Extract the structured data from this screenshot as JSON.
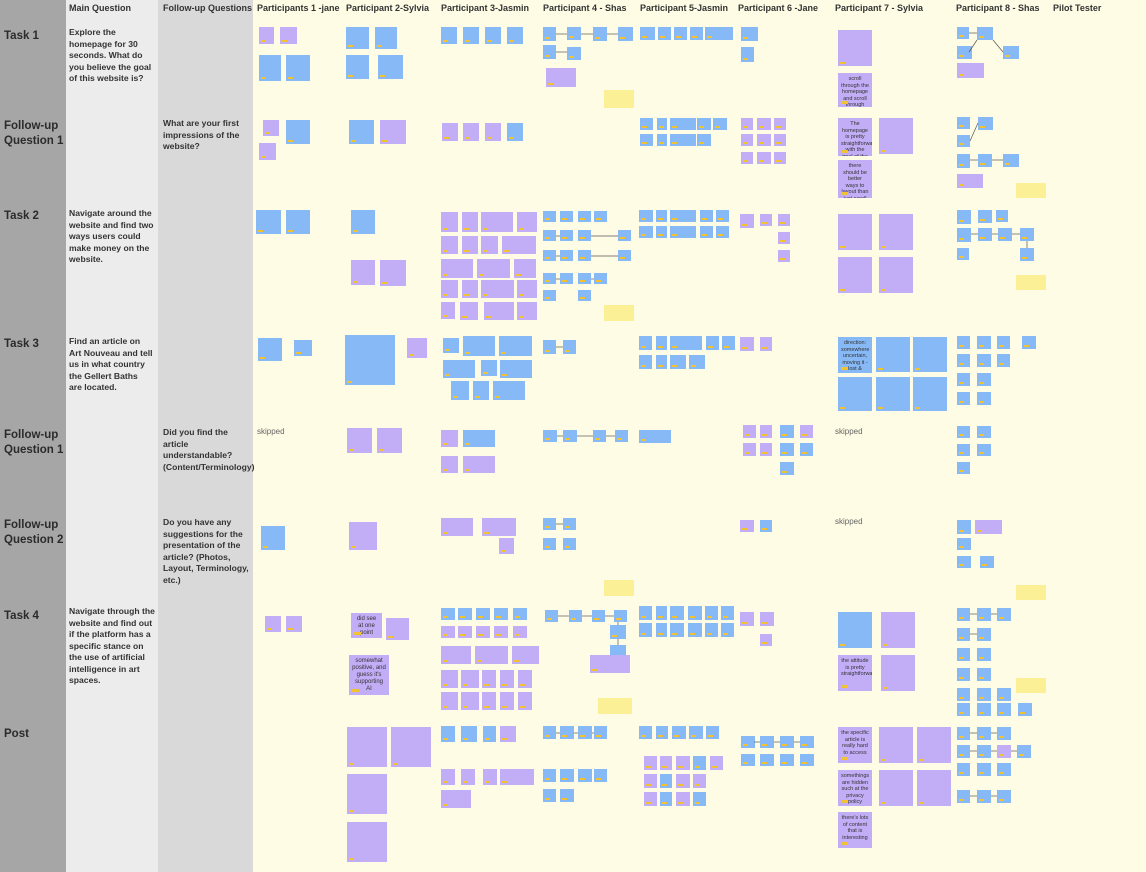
{
  "headers": {
    "main_question": "Main Question",
    "followup_questions": "Follow-up Questions",
    "participants": [
      "Participants 1 -jane",
      "Participant 2-Sylvia",
      "Participant 3-Jasmin",
      "Participant 4 - Shas",
      "Participant 5-Jasmin",
      "Participant 6 -Jane",
      "Participant 7 - Sylvia",
      "Participant 8 - Shas",
      "Pilot Tester"
    ]
  },
  "rows": [
    {
      "label": "Task 1",
      "main": "Explore the homepage for 30 seconds. What do you believe the goal of this website is?",
      "followup": ""
    },
    {
      "label": "Follow-up Question 1",
      "main": "",
      "followup": "What are your first impressions of the website?"
    },
    {
      "label": "Task 2",
      "main": "Navigate around the website and find two ways users could make money on the website.",
      "followup": ""
    },
    {
      "label": "Task 3",
      "main": "Find an article on Art Nouveau and tell us in what country the Gellert Baths are located.",
      "followup": ""
    },
    {
      "label": "Follow-up Question 1",
      "main": "",
      "followup": "Did you find the article understandable? (Content/Terminology)"
    },
    {
      "label": "Follow-up Question 2",
      "main": "",
      "followup": "Do you have any suggestions for the presentation of the article? (Photos, Layout, Terminology, etc.)"
    },
    {
      "label": "Task 4",
      "main": "Navigate through the website and find out if the platform has a specific stance on the use of artificial intelligence in art spaces.",
      "followup": ""
    },
    {
      "label": "Post",
      "main": "",
      "followup": ""
    }
  ],
  "skipped_label": "skipped",
  "readable_notes": {
    "t1_p7_a": "scroll through the homepage and scroll through",
    "fq1_p7_a": "The homepage is pretty straightforward with the goal of the website",
    "fq1_p7_b": "there should be better ways to layout than just scroll down",
    "t3_p7_a": "direction: somewhere uncertain, moving it - lost & frustrated",
    "t4_p2_a": "did see at one point",
    "t4_p2_b": "somewhat positive, and guess it's supporting AI",
    "t4_p7_a": "the attitude is pretty straightforward",
    "post_p7_a": "the specific article is really hard to access",
    "post_p7_b": "somethings are hidden such at the privacy policy",
    "post_p7_c": "there's lots of content that is interesting"
  },
  "colors": {
    "row_label_column": "#a6a6a6",
    "main_question_column": "#ececec",
    "followup_column": "#d9d9d9",
    "board_background": "#fffce5",
    "sticky_blue": "#86b9f6",
    "sticky_purple": "#c2adf7",
    "sticky_yellow": "#fbf096",
    "tag_yellow": "#f2c230"
  }
}
